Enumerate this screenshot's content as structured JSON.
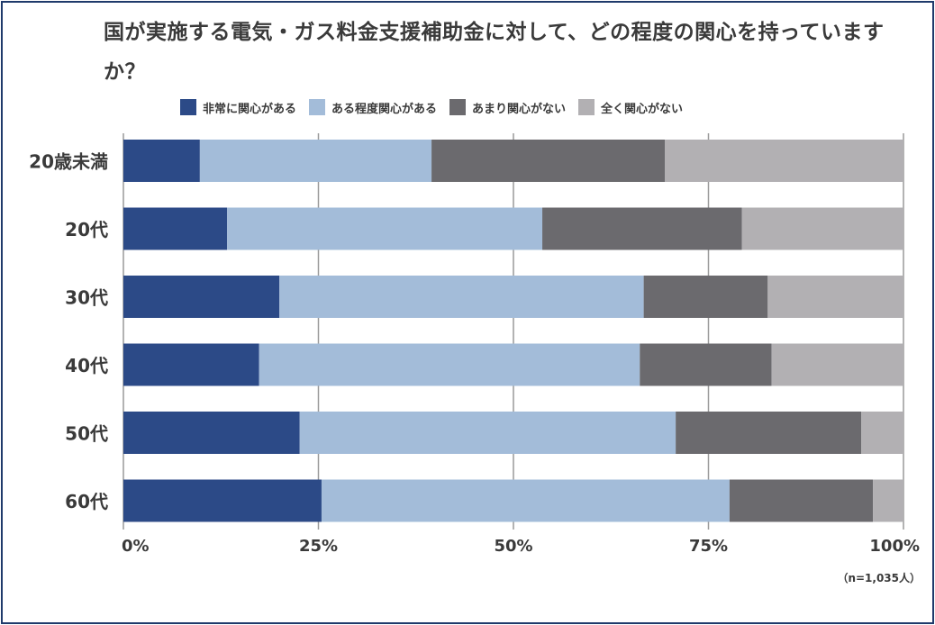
{
  "chart_data": {
    "type": "bar",
    "orientation": "horizontal",
    "stacked": true,
    "title": "国が実施する電気・ガス料金支援補助金に対して、どの程度の関心を持っていますか？",
    "categories": [
      "20歳未満",
      "20代",
      "30代",
      "40代",
      "50代",
      "60代"
    ],
    "series": [
      {
        "name": "非常に関心がある",
        "color": "#2c4a87",
        "values": [
          9.8,
          13.3,
          20.0,
          17.4,
          22.6,
          25.4
        ]
      },
      {
        "name": "ある程度関心がある",
        "color": "#a3bcd9",
        "values": [
          29.7,
          40.4,
          46.7,
          48.8,
          48.2,
          52.3
        ]
      },
      {
        "name": "あまり関心がない",
        "color": "#6b6a6e",
        "values": [
          29.9,
          25.6,
          15.9,
          16.9,
          23.8,
          18.4
        ]
      },
      {
        "name": "全く関心がない",
        "color": "#b2b0b3",
        "values": [
          30.6,
          20.7,
          17.4,
          16.9,
          5.4,
          3.9
        ]
      }
    ],
    "xticks": [
      "0%",
      "25%",
      "50%",
      "75%",
      "100%"
    ],
    "xlim": [
      0,
      100
    ],
    "grid": true,
    "legend_position": "top",
    "note": "（n=1,035人）"
  }
}
